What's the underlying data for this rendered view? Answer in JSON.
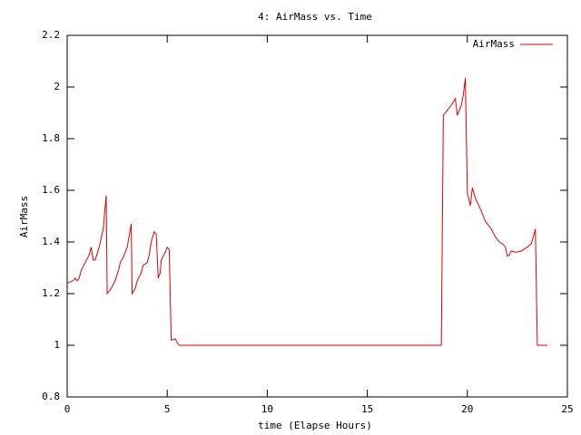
{
  "chart_data": {
    "type": "line",
    "title": "4: AirMass vs. Time",
    "xlabel": "time (Elapse Hours)",
    "ylabel": "AirMass",
    "x": [
      0,
      0.3,
      0.4,
      0.5,
      0.6,
      0.7,
      0.9,
      1.1,
      1.2,
      1.3,
      1.4,
      1.6,
      1.8,
      1.95,
      2.0,
      2.2,
      2.4,
      2.6,
      2.65,
      2.8,
      3.0,
      3.2,
      3.25,
      3.4,
      3.5,
      3.7,
      3.8,
      4.0,
      4.1,
      4.2,
      4.35,
      4.45,
      4.55,
      4.65,
      4.7,
      4.9,
      5.0,
      5.1,
      5.2,
      5.4,
      5.5,
      5.6,
      18.6,
      18.7,
      18.8,
      19.0,
      19.2,
      19.4,
      19.5,
      19.7,
      19.8,
      19.9,
      20.0,
      20.15,
      20.25,
      20.4,
      20.7,
      20.9,
      21.2,
      21.4,
      21.6,
      21.8,
      21.9,
      22.0,
      22.1,
      22.2,
      22.4,
      22.7,
      23.0,
      23.2,
      23.3,
      23.4,
      23.5,
      24.0
    ],
    "series": [
      {
        "name": "AirMass",
        "color": "#e00000",
        "values": [
          1.24,
          1.25,
          1.26,
          1.25,
          1.26,
          1.29,
          1.32,
          1.35,
          1.38,
          1.33,
          1.33,
          1.38,
          1.45,
          1.58,
          1.2,
          1.22,
          1.25,
          1.3,
          1.32,
          1.34,
          1.38,
          1.47,
          1.2,
          1.22,
          1.25,
          1.28,
          1.31,
          1.32,
          1.35,
          1.4,
          1.44,
          1.43,
          1.26,
          1.28,
          1.33,
          1.36,
          1.38,
          1.37,
          1.02,
          1.025,
          1.01,
          1.0,
          1.0,
          1.0,
          1.89,
          1.91,
          1.93,
          1.955,
          1.89,
          1.93,
          1.97,
          2.035,
          1.59,
          1.54,
          1.61,
          1.57,
          1.52,
          1.48,
          1.45,
          1.42,
          1.4,
          1.39,
          1.38,
          1.345,
          1.35,
          1.365,
          1.36,
          1.365,
          1.38,
          1.395,
          1.42,
          1.45,
          1.0,
          1.0
        ]
      }
    ],
    "xlim": [
      0,
      25
    ],
    "xticks": [
      0,
      5,
      10,
      15,
      20,
      25
    ],
    "ylim": [
      0.8,
      2.2
    ],
    "yticks": [
      0.8,
      1,
      1.2,
      1.4,
      1.6,
      1.8,
      2,
      2.2
    ],
    "legend": "top-right"
  }
}
